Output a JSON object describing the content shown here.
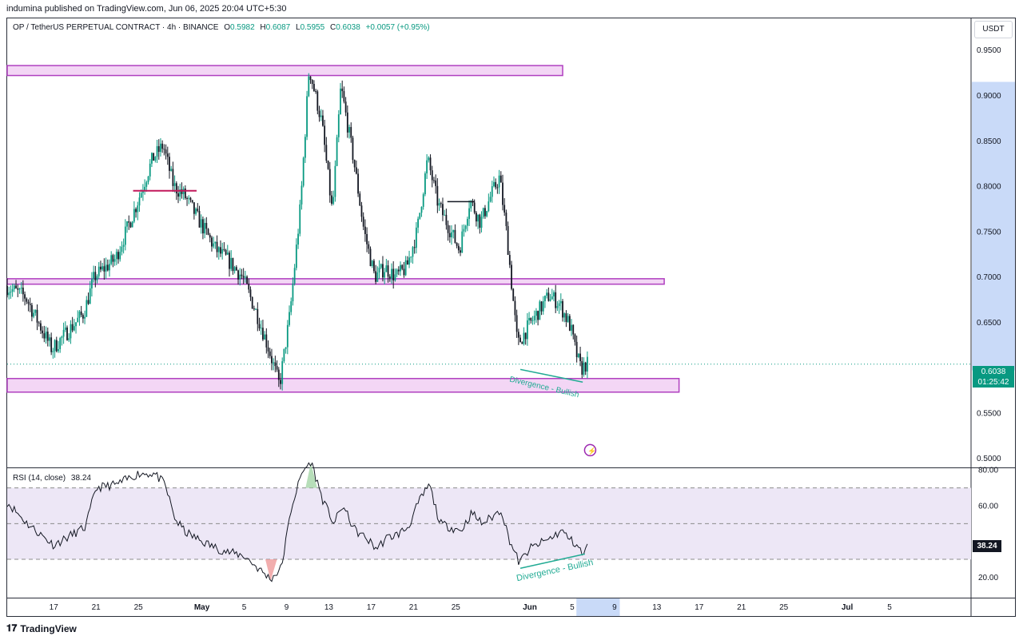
{
  "header": {
    "published": "indumina published on TradingView.com, Jun 06, 2025 20:04 UTC+5:30"
  },
  "legend": {
    "symbol": "OP / TetherUS PERPETUAL CONTRACT · 4h · BINANCE",
    "o_label": "O",
    "o": "0.5982",
    "h_label": "H",
    "h": "0.6087",
    "l_label": "L",
    "l": "0.5955",
    "c_label": "C",
    "c": "0.6038",
    "change": "+0.0057 (+0.95%)"
  },
  "rsi_legend": {
    "label": "RSI (14, close)",
    "value": "38.24"
  },
  "currency": "USDT",
  "price_tag": {
    "price": "0.6038",
    "countdown": "01:25:42"
  },
  "rsi_tag": "38.24",
  "footer": {
    "brand": "TradingView"
  },
  "colors": {
    "up": "#089981",
    "down": "#131722",
    "zone_fill": "#f3d6f5",
    "zone_border": "#b040c0",
    "rsi_band": "#ede7f6",
    "divergence": "#22ab94",
    "resistance_red": "#c2185b"
  },
  "annotations": {
    "div_price": "Divergence - Bullish",
    "div_rsi": "Divergence - Bullish"
  },
  "chart_data": [
    {
      "type": "candlestick",
      "title": "",
      "y_axis_ticks": [
        "0.9500",
        "0.9000",
        "0.8500",
        "0.8000",
        "0.7500",
        "0.7000",
        "0.6500",
        "0.5500",
        "0.5000"
      ],
      "y_axis_values": [
        0.95,
        0.9,
        0.85,
        0.8,
        0.75,
        0.7,
        0.65,
        0.55,
        0.5
      ],
      "ylim": [
        0.49,
        0.985
      ],
      "x_axis_ticks": [
        "17",
        "21",
        "25",
        "May",
        "5",
        "9",
        "13",
        "17",
        "21",
        "25",
        "Jun",
        "5",
        "9",
        "13",
        "17",
        "21",
        "25",
        "Jul",
        "5"
      ],
      "x_axis_days": [
        6,
        10,
        14,
        20,
        24,
        28,
        32,
        36,
        40,
        44,
        51,
        55,
        59,
        63,
        67,
        71,
        75,
        81,
        85
      ],
      "xlim_days": [
        1.6,
        92.7
      ],
      "highlight_range_days": [
        55.4,
        59.5
      ],
      "path_points": [
        [
          1.6,
          0.69
        ],
        [
          3.5,
          0.678
        ],
        [
          6.0,
          0.62
        ],
        [
          9.0,
          0.66
        ],
        [
          10.0,
          0.7
        ],
        [
          12.0,
          0.72
        ],
        [
          14.0,
          0.78
        ],
        [
          15.5,
          0.83
        ],
        [
          16.5,
          0.845
        ],
        [
          17.5,
          0.8
        ],
        [
          18.5,
          0.79
        ],
        [
          20.0,
          0.76
        ],
        [
          21.5,
          0.73
        ],
        [
          22.5,
          0.72
        ],
        [
          24.0,
          0.7
        ],
        [
          25.5,
          0.655
        ],
        [
          26.5,
          0.62
        ],
        [
          27.5,
          0.58
        ],
        [
          28.5,
          0.66
        ],
        [
          29.5,
          0.78
        ],
        [
          30.3,
          0.93
        ],
        [
          31.5,
          0.87
        ],
        [
          32.5,
          0.77
        ],
        [
          33.3,
          0.91
        ],
        [
          34.5,
          0.83
        ],
        [
          35.5,
          0.75
        ],
        [
          36.5,
          0.7
        ],
        [
          37.5,
          0.71
        ],
        [
          38.5,
          0.7
        ],
        [
          39.5,
          0.71
        ],
        [
          40.5,
          0.75
        ],
        [
          41.5,
          0.83
        ],
        [
          42.5,
          0.78
        ],
        [
          43.5,
          0.755
        ],
        [
          44.5,
          0.73
        ],
        [
          45.5,
          0.785
        ],
        [
          46.5,
          0.76
        ],
        [
          47.5,
          0.79
        ],
        [
          48.3,
          0.81
        ],
        [
          49.0,
          0.745
        ],
        [
          50.0,
          0.625
        ],
        [
          51.0,
          0.645
        ],
        [
          53.0,
          0.68
        ],
        [
          54.0,
          0.67
        ],
        [
          55.0,
          0.645
        ],
        [
          55.5,
          0.618
        ],
        [
          56.0,
          0.598
        ],
        [
          56.5,
          0.604
        ]
      ],
      "zones": [
        {
          "name": "upper-zone",
          "y_range": [
            0.922,
            0.933
          ],
          "x_range_days": [
            1.6,
            54.1
          ]
        },
        {
          "name": "middle-zone",
          "y_range": [
            0.692,
            0.698
          ],
          "x_range_days": [
            1.6,
            63.7
          ]
        },
        {
          "name": "lower-zone",
          "y_range": [
            0.573,
            0.588
          ],
          "x_range_days": [
            1.6,
            65.1
          ]
        }
      ],
      "resistance_line": {
        "x_range_days": [
          13.5,
          19.5
        ],
        "y": 0.795
      },
      "black_line": {
        "x_range_days": [
          43.2,
          45.8
        ],
        "y": 0.783
      },
      "divergence_line": {
        "from": [
          50.1,
          0.598
        ],
        "to": [
          56.0,
          0.584
        ]
      },
      "current_price": 0.6038
    },
    {
      "type": "line",
      "title": "RSI (14, close)",
      "y_axis_ticks": [
        "80.00",
        "60.00",
        "20.00"
      ],
      "y_axis_values": [
        80,
        60,
        20
      ],
      "ylim": [
        9,
        81
      ],
      "band": [
        30,
        70
      ],
      "midline": 50,
      "path_points": [
        [
          1.6,
          62
        ],
        [
          3.5,
          50
        ],
        [
          6.0,
          38
        ],
        [
          9.0,
          48
        ],
        [
          10.0,
          70
        ],
        [
          12.0,
          72
        ],
        [
          14.0,
          78
        ],
        [
          15.5,
          78
        ],
        [
          16.5,
          72
        ],
        [
          17.5,
          52
        ],
        [
          18.5,
          45
        ],
        [
          20.0,
          40
        ],
        [
          21.5,
          36
        ],
        [
          22.5,
          34
        ],
        [
          24.0,
          32
        ],
        [
          25.5,
          24
        ],
        [
          26.5,
          19
        ],
        [
          27.5,
          25
        ],
        [
          28.5,
          60
        ],
        [
          29.5,
          79
        ],
        [
          30.3,
          85
        ],
        [
          31.5,
          62
        ],
        [
          32.5,
          50
        ],
        [
          33.3,
          60
        ],
        [
          34.5,
          46
        ],
        [
          35.5,
          42
        ],
        [
          36.5,
          36
        ],
        [
          37.5,
          42
        ],
        [
          38.5,
          44
        ],
        [
          39.5,
          48
        ],
        [
          40.5,
          62
        ],
        [
          41.5,
          72
        ],
        [
          42.5,
          50
        ],
        [
          43.5,
          48
        ],
        [
          44.5,
          46
        ],
        [
          45.5,
          56
        ],
        [
          46.5,
          50
        ],
        [
          47.5,
          54
        ],
        [
          48.3,
          58
        ],
        [
          49.0,
          42
        ],
        [
          50.0,
          28
        ],
        [
          51.0,
          36
        ],
        [
          53.0,
          42
        ],
        [
          54.0,
          46
        ],
        [
          55.0,
          40
        ],
        [
          55.5,
          38
        ],
        [
          56.0,
          32
        ],
        [
          56.5,
          38.24
        ]
      ],
      "divergence_line": {
        "from": [
          50.1,
          25
        ],
        "to": [
          56.2,
          33
        ]
      },
      "current_value": 38.24
    }
  ]
}
